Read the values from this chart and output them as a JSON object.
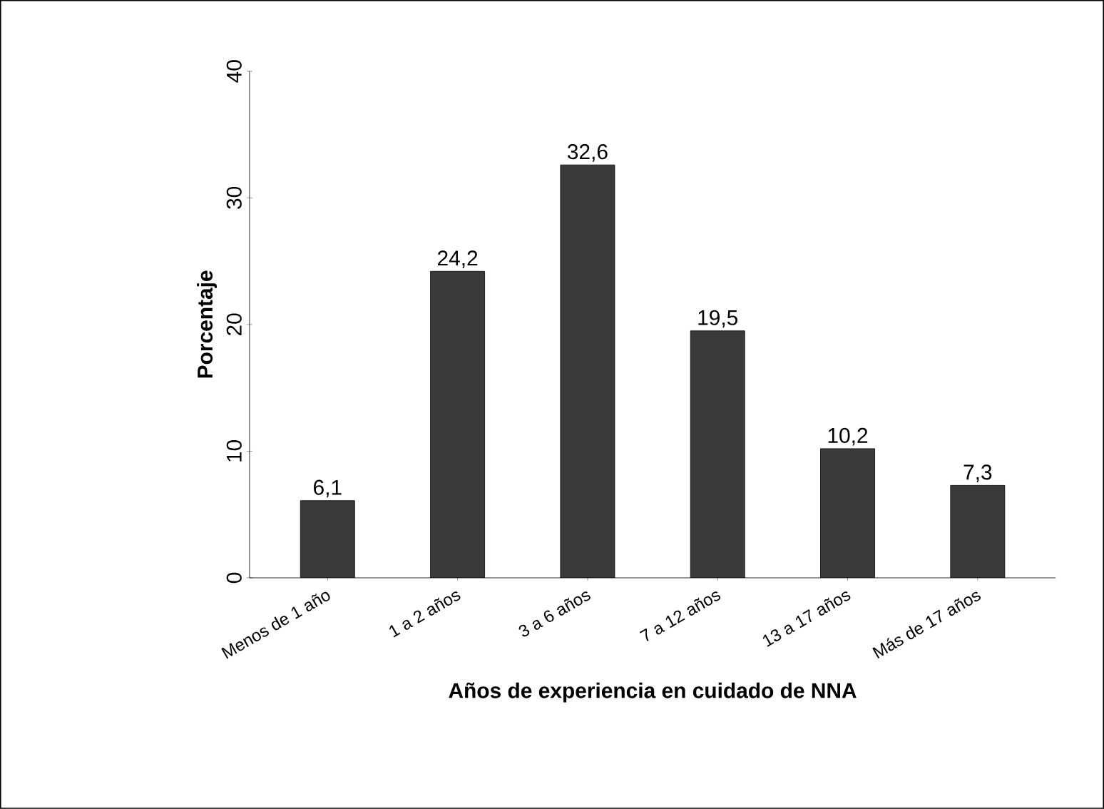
{
  "chart_data": {
    "type": "bar",
    "categories": [
      "Menos de 1 año",
      "1 a 2 años",
      "3 a 6 años",
      "7 a 12 años",
      "13 a 17 años",
      "Más de 17 años"
    ],
    "values": [
      6.1,
      24.2,
      32.6,
      19.5,
      10.2,
      7.3
    ],
    "value_labels": [
      "6,1",
      "24,2",
      "32,6",
      "19,5",
      "10,2",
      "7,3"
    ],
    "color": "#3a3a3a",
    "xlabel": "Años de experiencia en cuidado de NNA",
    "ylabel": "Porcentaje",
    "ylim": [
      0,
      40
    ],
    "yticks": [
      0,
      10,
      20,
      30,
      40
    ],
    "grid": false
  }
}
